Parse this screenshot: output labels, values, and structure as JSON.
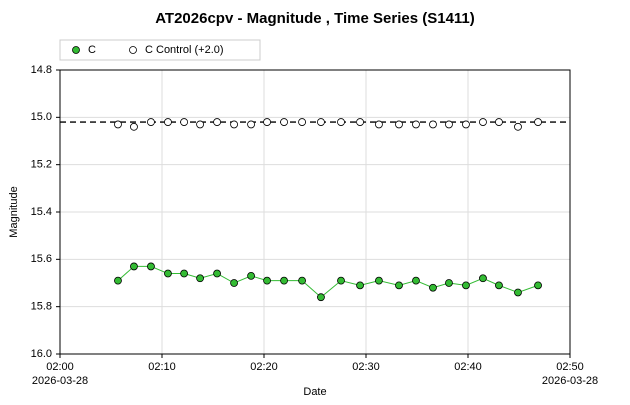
{
  "chart_data": {
    "type": "scatter",
    "title": "AT2026cpv - Magnitude , Time Series (S1411)",
    "x_label": "Date",
    "y_label": "Magnitude",
    "xlim": [
      "2026-03-28T02:00:00",
      "2026-03-28T02:50:00"
    ],
    "xticks": [
      {
        "value": "2026-03-28T02:00:00",
        "label": "02:00",
        "date": "2026-03-28"
      },
      {
        "value": "2026-03-28T02:10:00",
        "label": "02:10"
      },
      {
        "value": "2026-03-28T02:20:00",
        "label": "02:20"
      },
      {
        "value": "2026-03-28T02:30:00",
        "label": "02:30"
      },
      {
        "value": "2026-03-28T02:40:00",
        "label": "02:40"
      },
      {
        "value": "2026-03-28T02:50:00",
        "label": "02:50",
        "date": "2026-03-28"
      }
    ],
    "ylim": [
      14.8,
      16.0
    ],
    "y_inverted": true,
    "yticks": [
      14.8,
      {
        "value": 15,
        "label": "15.0"
      },
      15.2,
      15.4,
      15.6,
      15.8,
      {
        "value": 16,
        "label": "16.0"
      }
    ],
    "grid": true,
    "legend": "top-left",
    "x": [
      "2026-03-28T02:05:41",
      "2026-03-28T02:07:15",
      "2026-03-28T02:08:55",
      "2026-03-28T02:10:35",
      "2026-03-28T02:12:10",
      "2026-03-28T02:13:44",
      "2026-03-28T02:15:24",
      "2026-03-28T02:17:04",
      "2026-03-28T02:18:44",
      "2026-03-28T02:20:18",
      "2026-03-28T02:21:58",
      "2026-03-28T02:23:44",
      "2026-03-28T02:25:35",
      "2026-03-28T02:27:33",
      "2026-03-28T02:29:25",
      "2026-03-28T02:31:16",
      "2026-03-28T02:33:14",
      "2026-03-28T02:34:54",
      "2026-03-28T02:36:34",
      "2026-03-28T02:38:08",
      "2026-03-28T02:39:48",
      "2026-03-28T02:41:28",
      "2026-03-28T02:43:02",
      "2026-03-28T02:44:54",
      "2026-03-28T02:46:52"
    ],
    "series": [
      {
        "name": "C",
        "color": "#33bb33",
        "line": true,
        "values": [
          15.69,
          15.63,
          15.63,
          15.66,
          15.66,
          15.68,
          15.66,
          15.7,
          15.67,
          15.69,
          15.69,
          15.69,
          15.76,
          15.69,
          15.71,
          15.69,
          15.71,
          15.69,
          15.72,
          15.7,
          15.71,
          15.68,
          15.71,
          15.74,
          15.71
        ]
      },
      {
        "name": "C Control (+2.0)",
        "color": "#ffffff",
        "line": false,
        "values": [
          15.03,
          15.04,
          15.02,
          15.02,
          15.02,
          15.03,
          15.02,
          15.03,
          15.03,
          15.02,
          15.02,
          15.02,
          15.02,
          15.02,
          15.02,
          15.03,
          15.03,
          15.03,
          15.03,
          15.03,
          15.03,
          15.02,
          15.02,
          15.04,
          15.02
        ]
      }
    ],
    "reference_line": 15.02
  }
}
